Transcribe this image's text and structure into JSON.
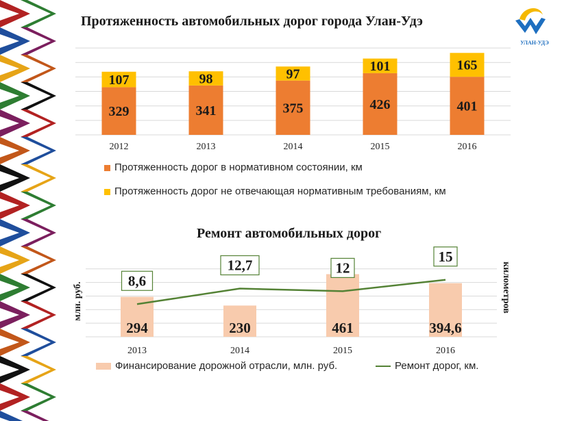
{
  "logo_text": "УЛАН-УДЭ",
  "colors": {
    "orange": "#ED7D31",
    "yellow": "#FFC000",
    "peach": "#F8CBAD",
    "line": "#548235"
  },
  "chart_data": [
    {
      "type": "bar",
      "stacked": true,
      "title": "Протяженность автомобильных дорог города Улан-Удэ",
      "categories": [
        "2012",
        "2013",
        "2014",
        "2015",
        "2016"
      ],
      "series": [
        {
          "name": "Протяженность дорог в нормативном состоянии, км",
          "values": [
            329,
            341,
            375,
            426,
            401
          ],
          "labels": [
            "329",
            "341",
            "375",
            "426",
            "401"
          ]
        },
        {
          "name": "Протяженность дорог не отвечающая нормативным требованиям, км",
          "values": [
            107,
            98,
            97,
            101,
            165
          ],
          "labels": [
            "107",
            "98",
            "97",
            "101",
            "165"
          ]
        }
      ],
      "ylim": [
        0,
        600
      ],
      "grid": true,
      "legend": "bottom"
    },
    {
      "type": "bar+line",
      "title": "Ремонт автомобильных дорог",
      "categories": [
        "2013",
        "2014",
        "2015",
        "2016"
      ],
      "ylabel_left": "млн. руб.",
      "ylabel_right": "километров",
      "series": [
        {
          "name": "Финансирование дорожной отрасли, млн. руб.",
          "type": "bar",
          "values": [
            294,
            230,
            461,
            394.6
          ],
          "labels": [
            "294",
            "230",
            "461",
            "394,6"
          ]
        },
        {
          "name": "Ремонт дорог, км.",
          "type": "line",
          "values": [
            8.6,
            12.7,
            12,
            15
          ],
          "labels": [
            "8,6",
            "12,7",
            "12",
            "15"
          ]
        }
      ],
      "ylim_left": [
        0,
        550
      ],
      "ylim_right": [
        0,
        20
      ],
      "grid": true,
      "legend": "bottom"
    }
  ]
}
